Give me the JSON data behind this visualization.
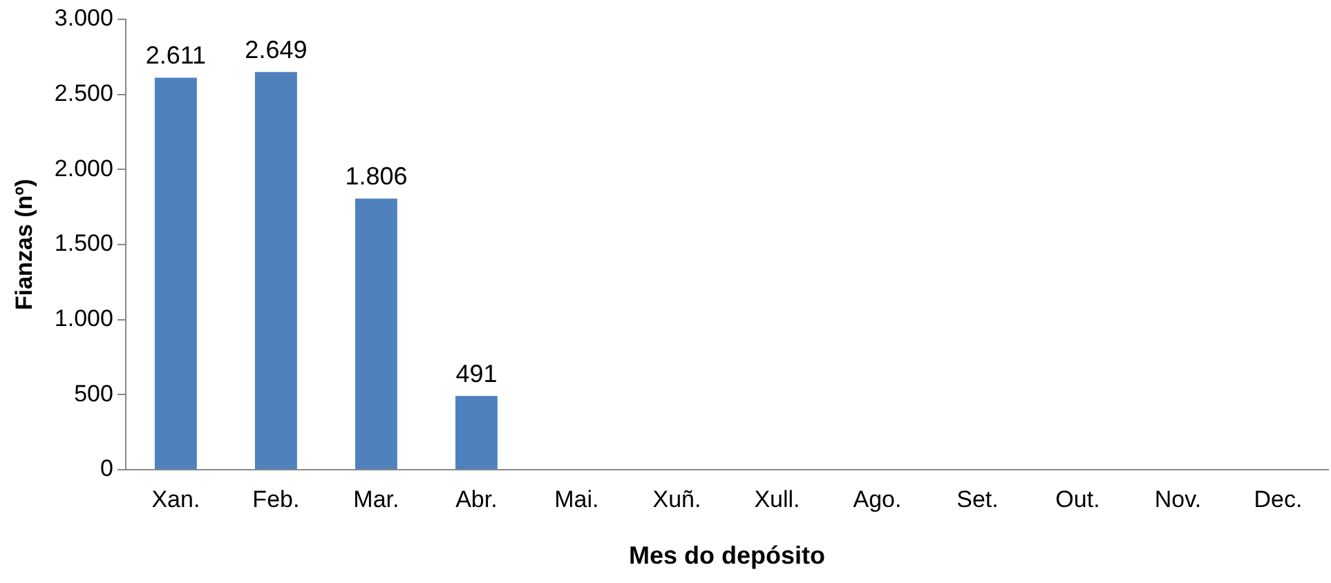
{
  "chart_data": {
    "type": "bar",
    "xlabel": "Mes do depósito",
    "ylabel": "Fianzas (nº)",
    "categories": [
      "Xan.",
      "Feb.",
      "Mar.",
      "Abr.",
      "Mai.",
      "Xuñ.",
      "Xull.",
      "Ago.",
      "Set.",
      "Out.",
      "Nov.",
      "Dec."
    ],
    "values": [
      2611,
      2649,
      1806,
      491,
      null,
      null,
      null,
      null,
      null,
      null,
      null,
      null
    ],
    "value_labels": [
      "2.611",
      "2.649",
      "1.806",
      "491",
      null,
      null,
      null,
      null,
      null,
      null,
      null,
      null
    ],
    "color": "#4f81bd",
    "ylim": [
      0,
      3000
    ],
    "yticks": [
      {
        "value": 0,
        "label": "0"
      },
      {
        "value": 500,
        "label": "500"
      },
      {
        "value": 1000,
        "label": "1.000"
      },
      {
        "value": 1500,
        "label": "1.500"
      },
      {
        "value": 2000,
        "label": "2.000"
      },
      {
        "value": 2500,
        "label": "2.500"
      },
      {
        "value": 3000,
        "label": "3.000"
      }
    ],
    "grid": false,
    "legend": false
  }
}
